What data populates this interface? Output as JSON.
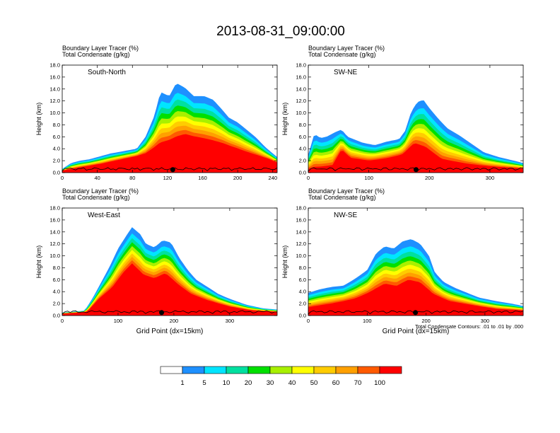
{
  "title": "2013-08-31_09:00:00",
  "colorbar": {
    "labels": [
      "1",
      "5",
      "10",
      "20",
      "30",
      "40",
      "50",
      "60",
      "70",
      "100"
    ],
    "colors": [
      "#ffffff",
      "#1e90ff",
      "#00e5ff",
      "#00e0a0",
      "#00e000",
      "#a8f000",
      "#ffff00",
      "#ffcc00",
      "#ffa000",
      "#ff5a00",
      "#ff0000"
    ]
  },
  "chart_data": [
    {
      "type": "heatmap",
      "section_label": "South-North",
      "subtitle_line1": "Boundary Layer Tracer   (%)",
      "subtitle_line2": "Total Condensate   (g/kg)",
      "ylabel": "Height (km)",
      "xlabel": "",
      "xlim": [
        0,
        245
      ],
      "ylim": [
        0,
        18
      ],
      "xticks": [
        "0",
        "40",
        "80",
        "120",
        "160",
        "200",
        "240"
      ],
      "xtick_values": [
        0,
        40,
        80,
        120,
        160,
        200,
        240
      ],
      "yticks": [
        "0.0",
        "2.0",
        "4.0",
        "6.0",
        "8.0",
        "10.0",
        "12.0",
        "14.0",
        "16.0",
        "18.0"
      ],
      "marker_x": 126,
      "top_profile": [
        [
          0,
          0.6
        ],
        [
          10,
          1.6
        ],
        [
          20,
          2.0
        ],
        [
          30,
          2.2
        ],
        [
          40,
          2.6
        ],
        [
          55,
          3.2
        ],
        [
          70,
          3.6
        ],
        [
          85,
          4.0
        ],
        [
          95,
          6.0
        ],
        [
          105,
          9.5
        ],
        [
          112,
          13.5
        ],
        [
          122,
          12.8
        ],
        [
          130,
          15.0
        ],
        [
          140,
          14.2
        ],
        [
          150,
          12.8
        ],
        [
          162,
          12.8
        ],
        [
          172,
          12.2
        ],
        [
          182,
          10.6
        ],
        [
          190,
          9.2
        ],
        [
          200,
          8.4
        ],
        [
          210,
          7.2
        ],
        [
          220,
          6.0
        ],
        [
          232,
          4.2
        ],
        [
          245,
          2.6
        ]
      ],
      "core_profile": [
        [
          0,
          0.3
        ],
        [
          20,
          0.8
        ],
        [
          45,
          1.4
        ],
        [
          70,
          2.2
        ],
        [
          95,
          3.0
        ],
        [
          110,
          4.2
        ],
        [
          125,
          5.0
        ],
        [
          140,
          5.8
        ],
        [
          160,
          5.2
        ],
        [
          185,
          4.4
        ],
        [
          210,
          3.2
        ],
        [
          235,
          2.2
        ],
        [
          245,
          1.6
        ]
      ]
    },
    {
      "type": "heatmap",
      "section_label": "SW-NE",
      "subtitle_line1": "Boundary Layer Tracer   (%)",
      "subtitle_line2": "Total Condensate   (g/kg)",
      "ylabel": "Height (km)",
      "xlabel": "",
      "xlim": [
        0,
        355
      ],
      "ylim": [
        0,
        18
      ],
      "xticks": [
        "0",
        "100",
        "200",
        "300"
      ],
      "xtick_values": [
        0,
        100,
        200,
        300
      ],
      "yticks": [
        "0.0",
        "2.0",
        "4.0",
        "6.0",
        "8.0",
        "10.0",
        "12.0",
        "14.0",
        "16.0",
        "18.0"
      ],
      "marker_x": 178,
      "top_profile": [
        [
          0,
          3.0
        ],
        [
          10,
          6.5
        ],
        [
          20,
          5.8
        ],
        [
          30,
          6.0
        ],
        [
          45,
          6.8
        ],
        [
          55,
          7.2
        ],
        [
          65,
          6.0
        ],
        [
          75,
          5.6
        ],
        [
          90,
          5.0
        ],
        [
          110,
          4.6
        ],
        [
          130,
          5.2
        ],
        [
          150,
          5.6
        ],
        [
          160,
          7.0
        ],
        [
          170,
          10.2
        ],
        [
          180,
          11.8
        ],
        [
          190,
          12.2
        ],
        [
          200,
          10.8
        ],
        [
          215,
          9.0
        ],
        [
          230,
          7.4
        ],
        [
          250,
          6.2
        ],
        [
          270,
          4.8
        ],
        [
          290,
          3.4
        ],
        [
          315,
          2.6
        ],
        [
          340,
          2.0
        ],
        [
          355,
          1.6
        ]
      ],
      "core_profile": [
        [
          0,
          0.4
        ],
        [
          40,
          0.8
        ],
        [
          55,
          3.6
        ],
        [
          70,
          2.2
        ],
        [
          100,
          1.8
        ],
        [
          130,
          2.2
        ],
        [
          155,
          2.8
        ],
        [
          175,
          4.4
        ],
        [
          195,
          3.6
        ],
        [
          220,
          1.8
        ],
        [
          260,
          1.2
        ],
        [
          300,
          0.9
        ],
        [
          355,
          0.6
        ]
      ]
    },
    {
      "type": "heatmap",
      "section_label": "West-East",
      "subtitle_line1": "Boundary Layer Tracer   (%)",
      "subtitle_line2": "Total Condensate   (g/kg)",
      "ylabel": "Height (km)",
      "xlabel": "Grid Point (dx=15km)",
      "xlim": [
        0,
        385
      ],
      "ylim": [
        0,
        18
      ],
      "xticks": [
        "0",
        "100",
        "200",
        "300"
      ],
      "xtick_values": [
        0,
        100,
        200,
        300
      ],
      "yticks": [
        "0.0",
        "2.0",
        "4.0",
        "6.0",
        "8.0",
        "10.0",
        "12.0",
        "14.0",
        "16.0",
        "18.0"
      ],
      "marker_x": 178,
      "top_profile": [
        [
          0,
          0.5
        ],
        [
          40,
          0.8
        ],
        [
          55,
          3.0
        ],
        [
          70,
          5.6
        ],
        [
          85,
          8.2
        ],
        [
          100,
          11.2
        ],
        [
          115,
          13.4
        ],
        [
          125,
          14.8
        ],
        [
          140,
          13.6
        ],
        [
          150,
          12.0
        ],
        [
          165,
          11.4
        ],
        [
          180,
          12.6
        ],
        [
          195,
          12.2
        ],
        [
          210,
          9.6
        ],
        [
          225,
          7.6
        ],
        [
          240,
          6.0
        ],
        [
          260,
          4.8
        ],
        [
          280,
          3.6
        ],
        [
          300,
          2.8
        ],
        [
          330,
          1.8
        ],
        [
          360,
          1.2
        ],
        [
          385,
          1.0
        ]
      ],
      "core_profile": [
        [
          0,
          0.3
        ],
        [
          45,
          0.6
        ],
        [
          65,
          2.6
        ],
        [
          90,
          4.4
        ],
        [
          110,
          6.8
        ],
        [
          125,
          8.2
        ],
        [
          145,
          6.4
        ],
        [
          165,
          5.8
        ],
        [
          185,
          6.6
        ],
        [
          205,
          5.0
        ],
        [
          230,
          3.4
        ],
        [
          260,
          2.4
        ],
        [
          300,
          1.4
        ],
        [
          340,
          0.8
        ],
        [
          385,
          0.6
        ]
      ]
    },
    {
      "type": "heatmap",
      "section_label": "NW-SE",
      "subtitle_line1": "Boundary Layer Tracer   (%)",
      "subtitle_line2": "Total Condensate   (g/kg)",
      "ylabel": "Height (km)",
      "xlabel": "Grid Point (dx=15km)",
      "note": "Total Condensate Contours: .01 to .01 by .000",
      "xlim": [
        0,
        365
      ],
      "ylim": [
        0,
        18
      ],
      "xticks": [
        "0",
        "100",
        "200",
        "300"
      ],
      "xtick_values": [
        0,
        100,
        200,
        300
      ],
      "yticks": [
        "0.0",
        "2.0",
        "4.0",
        "6.0",
        "8.0",
        "10.0",
        "12.0",
        "14.0",
        "16.0",
        "18.0"
      ],
      "marker_x": 182,
      "top_profile": [
        [
          0,
          3.8
        ],
        [
          20,
          4.4
        ],
        [
          40,
          4.8
        ],
        [
          60,
          5.0
        ],
        [
          80,
          6.2
        ],
        [
          100,
          7.6
        ],
        [
          115,
          10.4
        ],
        [
          130,
          11.6
        ],
        [
          145,
          11.2
        ],
        [
          160,
          12.4
        ],
        [
          175,
          12.8
        ],
        [
          190,
          12.0
        ],
        [
          205,
          10.0
        ],
        [
          215,
          7.2
        ],
        [
          230,
          5.6
        ],
        [
          250,
          4.6
        ],
        [
          270,
          3.8
        ],
        [
          290,
          3.0
        ],
        [
          320,
          2.4
        ],
        [
          345,
          2.0
        ],
        [
          365,
          1.6
        ]
      ],
      "core_profile": [
        [
          0,
          1.2
        ],
        [
          40,
          1.8
        ],
        [
          80,
          2.6
        ],
        [
          110,
          3.8
        ],
        [
          130,
          4.8
        ],
        [
          150,
          4.4
        ],
        [
          170,
          5.4
        ],
        [
          190,
          5.0
        ],
        [
          210,
          3.4
        ],
        [
          240,
          2.2
        ],
        [
          280,
          1.6
        ],
        [
          320,
          1.0
        ],
        [
          365,
          0.8
        ]
      ]
    }
  ]
}
